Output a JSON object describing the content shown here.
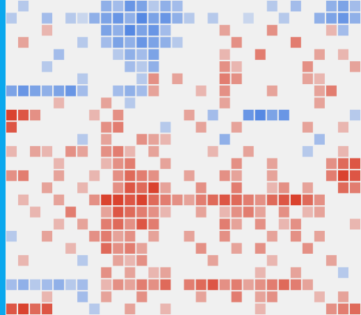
{
  "chart_data": {
    "type": "heatmap",
    "zlim": [
      -1,
      1
    ],
    "colors": [
      "#2f6fe0",
      "#f0f0f0",
      "#d8301a"
    ],
    "z": [
      [
        0,
        -0.3,
        0,
        0,
        0,
        0,
        0,
        0,
        -0.5,
        -0.4,
        -0.7,
        -0.6,
        -0.3,
        -0.5,
        -0.4,
        0,
        0,
        0,
        0,
        0,
        0,
        0,
        -0.3,
        0,
        -0.4,
        0,
        0,
        -0.5,
        -0.6,
        -0.4
      ],
      [
        -0.3,
        0,
        0,
        -0.4,
        0,
        -0.3,
        -0.2,
        -0.5,
        -0.6,
        -0.7,
        -0.5,
        -0.8,
        -0.6,
        -0.7,
        -0.5,
        -0.3,
        0,
        -0.3,
        0,
        0,
        -0.2,
        0,
        0,
        -0.3,
        0,
        0,
        -0.5,
        -0.6,
        -0.7,
        -0.5
      ],
      [
        0,
        0,
        0,
        0.3,
        0,
        0,
        0,
        0,
        -0.6,
        -0.5,
        -0.8,
        -0.6,
        -0.7,
        -0.4,
        0,
        0,
        0,
        0,
        0.4,
        0,
        0,
        0,
        0.5,
        0,
        0,
        0,
        0,
        0.3,
        -0.4,
        0
      ],
      [
        0,
        0.4,
        0,
        0,
        0,
        0,
        -0.3,
        0,
        -0.4,
        -0.6,
        -0.5,
        -0.7,
        -0.6,
        -0.5,
        -0.3,
        0,
        0,
        0,
        0,
        0.5,
        0,
        0,
        0,
        0,
        0.6,
        0,
        0,
        0,
        0,
        0
      ],
      [
        0,
        0,
        0,
        0,
        -0.4,
        0,
        0,
        0,
        0,
        -0.3,
        -0.5,
        -0.4,
        -0.6,
        0,
        0,
        0,
        0,
        0,
        0.3,
        0,
        0,
        0.6,
        0,
        0,
        0,
        0,
        0.4,
        0,
        0.3,
        0
      ],
      [
        0,
        0,
        0,
        -0.3,
        0,
        0,
        0,
        0,
        0,
        0,
        -0.4,
        -0.3,
        -0.5,
        0,
        0,
        0,
        0,
        0,
        0.5,
        0.3,
        0,
        0,
        0,
        0,
        0,
        0.5,
        0,
        0,
        0,
        0.4
      ],
      [
        0,
        0,
        0,
        0,
        0,
        0,
        -0.3,
        0,
        0,
        0,
        0,
        -0.3,
        0.5,
        0,
        0.4,
        0,
        0,
        0,
        0.6,
        0.5,
        0,
        0,
        0,
        0,
        0,
        0.4,
        0.3,
        0,
        0,
        0
      ],
      [
        -0.6,
        -0.7,
        -0.6,
        -0.5,
        -0.6,
        -0.7,
        -0.4,
        0,
        0,
        -0.4,
        -0.5,
        -0.4,
        0.4,
        0,
        0,
        0,
        0.3,
        0,
        0.5,
        0,
        0,
        0,
        0.4,
        0,
        0,
        0,
        0.4,
        0.6,
        0,
        0
      ],
      [
        0,
        0,
        0,
        0,
        0.3,
        0,
        0,
        0,
        0.4,
        0,
        -0.3,
        0,
        0,
        0,
        0,
        0,
        0,
        0,
        0.4,
        0,
        0,
        0,
        0,
        0,
        0,
        0,
        0.4,
        0,
        0,
        0
      ],
      [
        0.9,
        0.8,
        0.5,
        0,
        0,
        0,
        0,
        0.3,
        0,
        0.5,
        0,
        0,
        0,
        0,
        0,
        0.4,
        0,
        -0.4,
        0,
        0,
        -0.7,
        -0.8,
        -0.6,
        -0.7,
        0,
        0,
        0,
        0,
        0,
        -0.3
      ],
      [
        0.8,
        0,
        0,
        0,
        0,
        0,
        0,
        0,
        0.5,
        0.6,
        0,
        0,
        0,
        -0.3,
        0,
        0,
        0.4,
        0,
        0,
        0.4,
        0,
        0,
        0,
        0,
        0,
        0.4,
        0,
        0,
        0.3,
        0
      ],
      [
        0,
        0,
        0,
        0,
        0,
        0,
        -0.3,
        0,
        0.4,
        0,
        0,
        0.5,
        0.4,
        0.3,
        0,
        0,
        0,
        0,
        -0.5,
        0,
        0,
        0,
        0,
        0,
        0,
        0,
        -0.4,
        0,
        0,
        0
      ],
      [
        0.3,
        0,
        0.4,
        0.3,
        0,
        0.5,
        0.4,
        0,
        0.5,
        0.6,
        0.3,
        0,
        0.4,
        0,
        0,
        0,
        0,
        0.3,
        0,
        0,
        0.4,
        0,
        0,
        0,
        0,
        -0.3,
        0,
        0,
        0.3,
        0
      ],
      [
        0,
        0,
        0,
        0,
        0.3,
        0,
        0,
        0,
        0.3,
        0.5,
        0.6,
        0,
        0,
        0.4,
        0,
        0,
        0,
        0,
        0,
        0.5,
        0,
        0,
        0.4,
        0,
        0,
        0,
        0,
        0.5,
        0.7,
        0.8
      ],
      [
        0.5,
        0.6,
        0,
        0,
        0.4,
        0,
        0,
        0.3,
        0,
        0.5,
        0.7,
        0.6,
        0.5,
        0,
        0,
        0.4,
        0,
        0,
        0.5,
        0.4,
        0,
        0,
        0.4,
        0,
        0,
        0,
        0,
        0.6,
        0.9,
        0.8
      ],
      [
        0,
        0,
        0,
        0.4,
        0,
        0,
        0.3,
        0,
        0,
        0.5,
        0.8,
        0.7,
        0.9,
        0.4,
        0,
        0,
        0.5,
        0,
        0,
        0.6,
        0,
        0,
        0.3,
        0.5,
        0,
        0.4,
        0,
        0,
        0.7,
        0.6
      ],
      [
        0,
        0.3,
        0,
        0,
        0.4,
        0,
        0,
        0.5,
        0.9,
        0.9,
        0.8,
        0.9,
        0.7,
        0.6,
        0.5,
        0.4,
        0.6,
        0.7,
        0.8,
        0.7,
        0.6,
        0.5,
        0.7,
        0.8,
        0.9,
        0.7,
        0.5,
        0,
        0,
        0
      ],
      [
        0,
        0,
        0.3,
        0,
        0,
        0.6,
        0,
        0,
        0.4,
        0.8,
        0.7,
        0.6,
        0.5,
        0.3,
        0,
        0,
        0.4,
        0,
        0.3,
        0.5,
        0.6,
        0.4,
        0,
        0.5,
        0,
        0.3,
        0.4,
        0,
        0,
        0
      ],
      [
        0,
        0,
        0,
        0,
        0.3,
        0,
        0.4,
        0,
        0.6,
        0.7,
        0.5,
        0.8,
        0.6,
        0,
        0,
        0,
        0,
        0,
        0.6,
        0.4,
        0,
        0.5,
        0,
        0.3,
        0.5,
        0,
        0,
        0,
        0,
        0.3
      ],
      [
        -0.3,
        0,
        0,
        0.4,
        0,
        0,
        0,
        0.5,
        0.6,
        0.4,
        0.5,
        0,
        0.4,
        0,
        0,
        0.4,
        0,
        0,
        0.5,
        0,
        0,
        0,
        0.4,
        0,
        0.5,
        0,
        0.4,
        0,
        0,
        0
      ],
      [
        0,
        0,
        0,
        0,
        0,
        0.3,
        0,
        0,
        0.7,
        0.5,
        0.6,
        0.4,
        0,
        0,
        0,
        0,
        0.5,
        0,
        0,
        0.4,
        0,
        0.5,
        0,
        0,
        0,
        0.5,
        0,
        0,
        0,
        0
      ],
      [
        0,
        0.3,
        0,
        0,
        0,
        0,
        -0.3,
        0,
        0,
        0.4,
        0.3,
        0.5,
        0,
        0,
        0,
        0,
        0,
        0.4,
        0,
        0,
        0,
        0,
        0.3,
        0,
        0,
        0,
        0,
        0.4,
        0,
        0
      ],
      [
        0,
        0,
        0,
        0,
        0,
        0,
        0,
        0,
        0.5,
        0,
        0.4,
        0,
        0.3,
        0.4,
        0,
        0,
        0,
        0,
        0,
        0,
        0,
        0.3,
        0,
        0,
        0.4,
        0,
        0,
        0,
        -0.3,
        0
      ],
      [
        -0.4,
        -0.5,
        -0.3,
        -0.4,
        -0.5,
        -0.3,
        -0.4,
        0,
        0.3,
        0.5,
        0.4,
        0.6,
        0.5,
        0.7,
        0,
        0.6,
        0.7,
        0.8,
        0.5,
        0.6,
        0.4,
        0.5,
        0.6,
        0.7,
        0.6,
        0.4,
        0,
        0,
        0,
        0
      ],
      [
        0,
        0,
        0,
        0.3,
        0,
        0,
        -0.4,
        0,
        0.4,
        0,
        0,
        0.5,
        0,
        0,
        0,
        0,
        0.4,
        0,
        0,
        0.6,
        0,
        0.4,
        0.5,
        0,
        0,
        0,
        0.3,
        0,
        0.4,
        0
      ],
      [
        0.8,
        0.9,
        0.7,
        0.8,
        0,
        0,
        0,
        -0.3,
        0,
        0,
        0.4,
        0,
        0,
        0.3,
        0,
        0,
        0,
        0,
        0,
        0,
        0,
        0.3,
        0,
        0,
        0,
        0,
        0,
        0.5,
        0.6,
        0.7
      ]
    ]
  }
}
